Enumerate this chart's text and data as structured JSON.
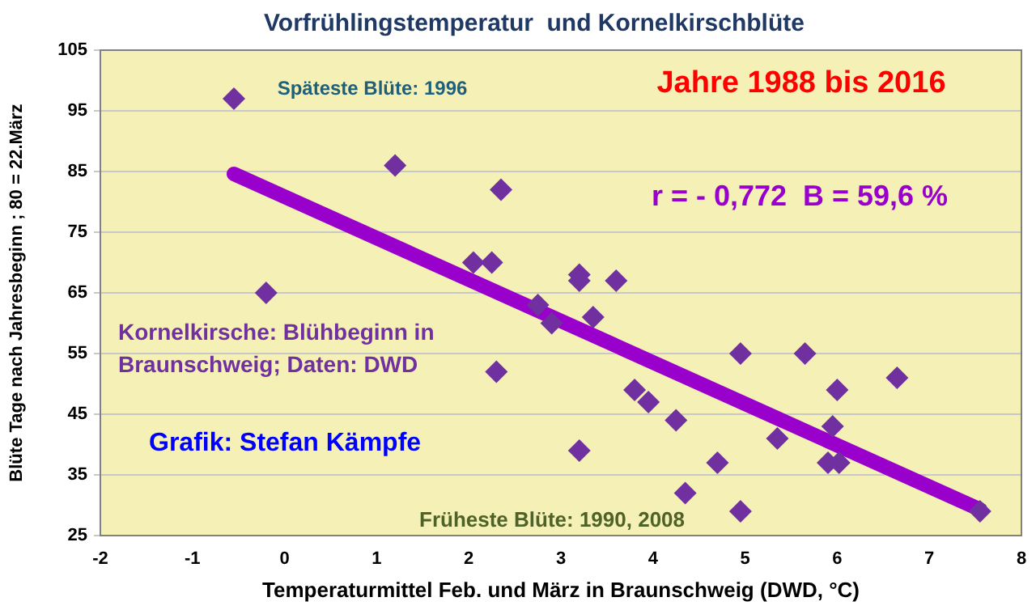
{
  "chart_data": {
    "type": "scatter",
    "title": "Vorfrühlingstemperatur  und Kornelkirschblüte",
    "xlabel": "Temperaturmittel Feb. und März in Braunschweig (DWD, °C)",
    "ylabel": "Blüte Tage nach Jahresbeginn ; 80 = 22.März",
    "annotations": [
      "Späteste Blüte: 1996",
      "Jahre 1988 bis 2016",
      "r = - 0,772  B = 59,6 %",
      "Kornelkirsche: Blühbeginn in Braunschweig; Daten: DWD",
      "Grafik: Stefan Kämpfe",
      "Früheste Blüte: 1990, 2008"
    ],
    "series": [
      {
        "color": "#7030a0",
        "marker": "diamond",
        "x": [
          -0.55,
          -0.2,
          1.2,
          2.35,
          2.05,
          2.25,
          2.75,
          3.2,
          3.2,
          3.6,
          3.35,
          2.9,
          2.3,
          3.8,
          3.95,
          4.25,
          3.2,
          4.95,
          5.65,
          6.65,
          6.0,
          5.95,
          5.35,
          4.7,
          5.9,
          6.02,
          4.35,
          4.95,
          7.55
        ],
        "values": [
          97,
          65,
          86,
          82,
          70,
          70,
          63,
          68,
          67,
          67,
          61,
          60,
          52,
          49,
          47,
          44,
          39,
          55,
          55,
          51,
          49,
          43,
          41,
          37,
          37,
          37,
          32,
          29,
          29
        ]
      },
      {
        "type": "line",
        "color": "#9900cc",
        "marker": "none",
        "x": [
          -0.55,
          7.55
        ],
        "values": [
          84.6,
          29.3
        ]
      }
    ],
    "xlim": [
      -2,
      8
    ],
    "xticks": [
      -2,
      -1,
      0,
      1,
      2,
      3,
      4,
      5,
      6,
      7,
      8
    ],
    "ylim": [
      25,
      105
    ],
    "yticks": [
      25,
      35,
      45,
      55,
      65,
      75,
      85,
      95,
      105
    ],
    "grid": "y",
    "legend": false
  }
}
